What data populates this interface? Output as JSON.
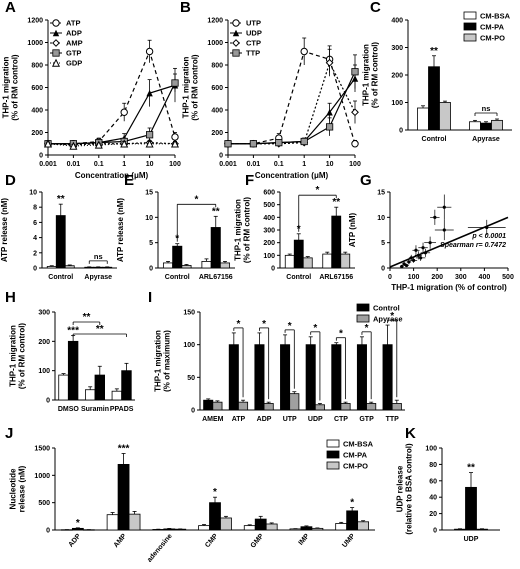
{
  "figure": {
    "width": 520,
    "height": 569
  },
  "colors": {
    "cmBSA": "#ffffff",
    "cmPA": "#000000",
    "cmPO": "#c8c8c8",
    "control": "#000000",
    "apyrase": "#a0a0a0",
    "stroke": "#000000"
  },
  "chart_data": [
    {
      "id": "A",
      "panel_label": "A",
      "type": "line",
      "xscale": "log",
      "xlim": [
        0.001,
        100
      ],
      "ylim": [
        0,
        1200
      ],
      "x_ticks": [
        0.001,
        0.01,
        0.1,
        1,
        10,
        100
      ],
      "x_tick_labels": [
        "0.001",
        "0.01",
        "0.1",
        "1",
        "10",
        "100"
      ],
      "y_ticks": [
        0,
        200,
        400,
        600,
        800,
        1000,
        1200
      ],
      "xlabel": "Concentration (μM)",
      "ylabel": [
        "THP-1 migration",
        "(% of RM control)"
      ],
      "x": [
        0.001,
        0.01,
        0.1,
        1,
        10,
        100
      ],
      "series": [
        {
          "name": "ATP",
          "marker": "circle-open",
          "dash": "4,3",
          "values": [
            100,
            100,
            120,
            380,
            920,
            160
          ],
          "err": [
            20,
            20,
            30,
            80,
            100,
            40
          ]
        },
        {
          "name": "ADP",
          "marker": "triangle-filled",
          "dash": "",
          "values": [
            100,
            100,
            110,
            150,
            550,
            620
          ],
          "err": [
            20,
            20,
            25,
            40,
            120,
            150
          ]
        },
        {
          "name": "AMP",
          "marker": "diamond-open",
          "dash": "2,2",
          "values": [
            100,
            90,
            100,
            100,
            110,
            100
          ],
          "err": [
            15,
            15,
            20,
            20,
            20,
            20
          ]
        },
        {
          "name": "GTP",
          "marker": "square-gray",
          "dash": "",
          "values": [
            100,
            100,
            110,
            120,
            180,
            640
          ],
          "err": [
            20,
            20,
            20,
            30,
            60,
            80
          ]
        },
        {
          "name": "GDP",
          "marker": "triangle-open",
          "dash": "1,2",
          "values": [
            100,
            80,
            90,
            100,
            100,
            100
          ],
          "err": [
            15,
            15,
            15,
            20,
            20,
            20
          ]
        }
      ]
    },
    {
      "id": "B",
      "panel_label": "B",
      "type": "line",
      "xscale": "log",
      "xlim": [
        0.001,
        100
      ],
      "ylim": [
        0,
        1200
      ],
      "x_ticks": [
        0.001,
        0.01,
        0.1,
        1,
        10,
        100
      ],
      "x_tick_labels": [
        "0.001",
        "0.01",
        "0.1",
        "1",
        "10",
        "100"
      ],
      "y_ticks": [
        0,
        200,
        400,
        600,
        800,
        1000,
        1200
      ],
      "xlabel": "Concentration (μM)",
      "ylabel": [
        "THP-1 migration",
        "(% of RM control)"
      ],
      "x": [
        0.001,
        0.01,
        0.1,
        1,
        10,
        100
      ],
      "series": [
        {
          "name": "UTP",
          "marker": "circle-open",
          "dash": "4,3",
          "values": [
            100,
            100,
            150,
            920,
            850,
            100
          ],
          "err": [
            20,
            20,
            40,
            120,
            120,
            30
          ]
        },
        {
          "name": "UDP",
          "marker": "triangle-filled",
          "dash": "",
          "values": [
            100,
            100,
            110,
            120,
            380,
            680
          ],
          "err": [
            20,
            20,
            25,
            30,
            80,
            120
          ]
        },
        {
          "name": "CTP",
          "marker": "diamond-open",
          "dash": "2,2",
          "values": [
            100,
            100,
            100,
            110,
            820,
            380
          ],
          "err": [
            15,
            15,
            20,
            25,
            120,
            100
          ]
        },
        {
          "name": "TTP",
          "marker": "square-gray",
          "dash": "",
          "values": [
            100,
            100,
            110,
            120,
            250,
            740
          ],
          "err": [
            20,
            20,
            20,
            30,
            80,
            150
          ]
        }
      ]
    },
    {
      "id": "C",
      "panel_label": "C",
      "type": "bar",
      "ylim": [
        0,
        400
      ],
      "y_ticks": [
        0,
        100,
        200,
        300,
        400
      ],
      "ylabel": [
        "THP-1 migration",
        "(% of RM control)"
      ],
      "categories": [
        "Control",
        "Apyrase"
      ],
      "series": [
        {
          "name": "CM-BSA",
          "fill": "#ffffff",
          "values": [
            80,
            30
          ],
          "err": [
            8,
            5
          ]
        },
        {
          "name": "CM-PA",
          "fill": "#000000",
          "values": [
            230,
            25
          ],
          "err": [
            40,
            5
          ]
        },
        {
          "name": "CM-PO",
          "fill": "#c8c8c8",
          "values": [
            100,
            35
          ],
          "err": [
            5,
            5
          ]
        }
      ],
      "annotations": [
        {
          "category": 0,
          "series": 1,
          "text": "**"
        }
      ],
      "brackets": [
        {
          "category": 1,
          "text": "ns"
        }
      ],
      "legend_position": "top-right"
    },
    {
      "id": "D",
      "panel_label": "D",
      "type": "bar",
      "ylim": [
        0,
        10
      ],
      "y_ticks": [
        0,
        2,
        4,
        6,
        8,
        10
      ],
      "ylabel": [
        "ATP release (nM)"
      ],
      "categories": [
        "Control",
        "Apyrase"
      ],
      "series": [
        {
          "name": "CM-BSA",
          "fill": "#ffffff",
          "values": [
            0.2,
            0.1
          ],
          "err": [
            0.1,
            0.05
          ]
        },
        {
          "name": "CM-PA",
          "fill": "#000000",
          "values": [
            6.9,
            0.1
          ],
          "err": [
            1.5,
            0.05
          ]
        },
        {
          "name": "CM-PO",
          "fill": "#c8c8c8",
          "values": [
            0.3,
            0.1
          ],
          "err": [
            0.1,
            0.05
          ]
        }
      ],
      "annotations": [
        {
          "category": 0,
          "series": 1,
          "text": "**"
        }
      ],
      "brackets": [
        {
          "category": 1,
          "text": "ns"
        }
      ]
    },
    {
      "id": "E",
      "panel_label": "E",
      "type": "bar",
      "ylim": [
        0,
        15
      ],
      "y_ticks": [
        0,
        5,
        10,
        15
      ],
      "ylabel": [
        "ATP release (nM)"
      ],
      "categories": [
        "Control",
        "ARL67156"
      ],
      "series": [
        {
          "name": "CM-BSA",
          "fill": "#ffffff",
          "values": [
            1.0,
            1.3
          ],
          "err": [
            0.3,
            0.5
          ]
        },
        {
          "name": "CM-PA",
          "fill": "#000000",
          "values": [
            4.3,
            8.0
          ],
          "err": [
            0.5,
            2.2
          ]
        },
        {
          "name": "CM-PO",
          "fill": "#c8c8c8",
          "values": [
            0.5,
            1.0
          ],
          "err": [
            0.2,
            0.3
          ]
        }
      ],
      "annotations": [
        {
          "category": 0,
          "series": 1,
          "text": "*"
        },
        {
          "category": 1,
          "series": 1,
          "text": "**"
        }
      ],
      "bracket_between": {
        "text": "*"
      }
    },
    {
      "id": "F",
      "panel_label": "F",
      "type": "bar",
      "ylim": [
        0,
        600
      ],
      "y_ticks": [
        0,
        100,
        200,
        300,
        400,
        500,
        600
      ],
      "ylabel": [
        "THP-1 migration",
        "(% of RM control)"
      ],
      "categories": [
        "Control",
        "ARL67156"
      ],
      "series": [
        {
          "name": "CM-BSA",
          "fill": "#ffffff",
          "values": [
            100,
            110
          ],
          "err": [
            10,
            15
          ]
        },
        {
          "name": "CM-PA",
          "fill": "#000000",
          "values": [
            220,
            410
          ],
          "err": [
            50,
            70
          ]
        },
        {
          "name": "CM-PO",
          "fill": "#c8c8c8",
          "values": [
            80,
            110
          ],
          "err": [
            10,
            15
          ]
        }
      ],
      "annotations": [
        {
          "category": 0,
          "series": 1,
          "text": "*"
        },
        {
          "category": 1,
          "series": 1,
          "text": "**"
        }
      ],
      "bracket_between": {
        "text": "*"
      }
    },
    {
      "id": "G",
      "panel_label": "G",
      "type": "scatter",
      "xlim": [
        0,
        500
      ],
      "ylim": [
        0,
        15
      ],
      "x_ticks": [
        0,
        100,
        200,
        300,
        400,
        500
      ],
      "y_ticks": [
        0,
        5,
        10,
        15
      ],
      "xlabel": "THP-1 migration (% of control)",
      "ylabel": [
        "ATP (nM)"
      ],
      "annotation": [
        "p < 0.0001",
        "Spearman r= 0.7472"
      ],
      "regression": [
        [
          0,
          0.2
        ],
        [
          500,
          10
        ]
      ],
      "points": [
        {
          "x": 230,
          "y": 12,
          "ex": 30,
          "ey": 2.5
        },
        {
          "x": 190,
          "y": 10,
          "ex": 20,
          "ey": 1.5
        },
        {
          "x": 410,
          "y": 8,
          "ex": 80,
          "ey": 1.5
        },
        {
          "x": 230,
          "y": 7.5,
          "ex": 40,
          "ey": 2
        },
        {
          "x": 170,
          "y": 5,
          "ex": 25,
          "ey": 1.2
        },
        {
          "x": 140,
          "y": 4,
          "ex": 20,
          "ey": 1
        },
        {
          "x": 110,
          "y": 3.5,
          "ex": 15,
          "ey": 1
        },
        {
          "x": 120,
          "y": 2.5,
          "ex": 15,
          "ey": 0.8
        },
        {
          "x": 90,
          "y": 2,
          "ex": 10,
          "ey": 0.6
        },
        {
          "x": 80,
          "y": 1.2,
          "ex": 10,
          "ey": 0.5
        },
        {
          "x": 60,
          "y": 0.8,
          "ex": 10,
          "ey": 0.4
        },
        {
          "x": 100,
          "y": 1.5,
          "ex": 15,
          "ey": 0.5
        },
        {
          "x": 70,
          "y": 0.5,
          "ex": 10,
          "ey": 0.3
        },
        {
          "x": 130,
          "y": 2,
          "ex": 20,
          "ey": 0.6
        },
        {
          "x": 50,
          "y": 0.3,
          "ex": 8,
          "ey": 0.2
        },
        {
          "x": 150,
          "y": 3,
          "ex": 20,
          "ey": 0.8
        }
      ]
    },
    {
      "id": "H",
      "panel_label": "H",
      "type": "bar",
      "ylim": [
        0,
        300
      ],
      "y_ticks": [
        0,
        100,
        200,
        300
      ],
      "ylabel": [
        "THP-1 migration",
        "(% of RM control)"
      ],
      "categories": [
        "DMSO",
        "Suramin",
        "PPADS"
      ],
      "series": [
        {
          "name": "CM-BSA",
          "fill": "#ffffff",
          "values": [
            85,
            35,
            30
          ],
          "err": [
            5,
            10,
            8
          ]
        },
        {
          "name": "CM-PA",
          "fill": "#000000",
          "values": [
            200,
            85,
            100
          ],
          "err": [
            20,
            30,
            25
          ]
        }
      ],
      "annotations": [
        {
          "category": 0,
          "series": 1,
          "text": "***"
        }
      ],
      "brackets_multi": [
        {
          "from": 0,
          "to": 1,
          "text": "**"
        },
        {
          "from": 0,
          "to": 2,
          "text": "**"
        }
      ]
    },
    {
      "id": "I",
      "panel_label": "I",
      "type": "bar",
      "ylim": [
        0,
        150
      ],
      "y_ticks": [
        0,
        50,
        100,
        150
      ],
      "ylabel": [
        "THP-1 migration",
        "(% of maximum)"
      ],
      "categories": [
        "AMEM",
        "ATP",
        "ADP",
        "UTP",
        "UDP",
        "CTP",
        "GTP",
        "TTP"
      ],
      "series": [
        {
          "name": "Control",
          "fill": "#000000",
          "values": [
            15,
            100,
            100,
            100,
            100,
            100,
            100,
            100
          ],
          "err": [
            2,
            18,
            18,
            15,
            12,
            3,
            12,
            30
          ]
        },
        {
          "name": "Apyrase",
          "fill": "#a0a0a0",
          "values": [
            12,
            12,
            10,
            25,
            8,
            10,
            10,
            10
          ],
          "err": [
            2,
            3,
            2,
            3,
            2,
            2,
            2,
            5
          ]
        }
      ],
      "pair_sig": [
        null,
        "*",
        "*",
        "*",
        "*",
        "*",
        "*",
        "*"
      ],
      "legend_position": "top-right"
    },
    {
      "id": "J",
      "panel_label": "J",
      "type": "bar",
      "ylim": [
        0,
        1500
      ],
      "y_ticks": [
        0,
        500,
        1000,
        1500
      ],
      "ylabel": [
        "Nucleotide",
        "release (nM)"
      ],
      "categories": [
        "ADP",
        "AMP",
        "adenosine",
        "CMP",
        "GMP",
        "IMP",
        "UMP"
      ],
      "series": [
        {
          "name": "CM-BSA",
          "fill": "#ffffff",
          "values": [
            5,
            280,
            10,
            80,
            80,
            20,
            120
          ],
          "err": [
            2,
            40,
            5,
            20,
            15,
            5,
            20
          ]
        },
        {
          "name": "CM-PA",
          "fill": "#000000",
          "values": [
            30,
            1200,
            20,
            500,
            200,
            60,
            350
          ],
          "err": [
            10,
            200,
            8,
            100,
            50,
            15,
            60
          ]
        },
        {
          "name": "CM-PO",
          "fill": "#c8c8c8",
          "values": [
            5,
            290,
            15,
            220,
            110,
            30,
            150
          ],
          "err": [
            2,
            50,
            5,
            30,
            20,
            8,
            20
          ]
        }
      ],
      "annotations": [
        {
          "category": 0,
          "series": 1,
          "text": "*"
        },
        {
          "category": 1,
          "series": 1,
          "text": "***"
        },
        {
          "category": 3,
          "series": 1,
          "text": "*"
        },
        {
          "category": 6,
          "series": 1,
          "text": "*"
        }
      ],
      "legend_position": "top-right"
    },
    {
      "id": "K",
      "panel_label": "K",
      "type": "bar",
      "ylim": [
        0,
        100
      ],
      "y_ticks": [
        0,
        20,
        40,
        60,
        80,
        100
      ],
      "ylabel": [
        "UDP release",
        "(relative to  BSA control)"
      ],
      "categories": [
        "UDP"
      ],
      "series": [
        {
          "name": "CM-BSA",
          "fill": "#ffffff",
          "values": [
            1
          ],
          "err": [
            0.5
          ]
        },
        {
          "name": "CM-PA",
          "fill": "#000000",
          "values": [
            52
          ],
          "err": [
            18
          ]
        },
        {
          "name": "CM-PO",
          "fill": "#c8c8c8",
          "values": [
            1
          ],
          "err": [
            0.5
          ]
        }
      ],
      "annotations": [
        {
          "category": 0,
          "series": 1,
          "text": "**"
        }
      ]
    }
  ]
}
